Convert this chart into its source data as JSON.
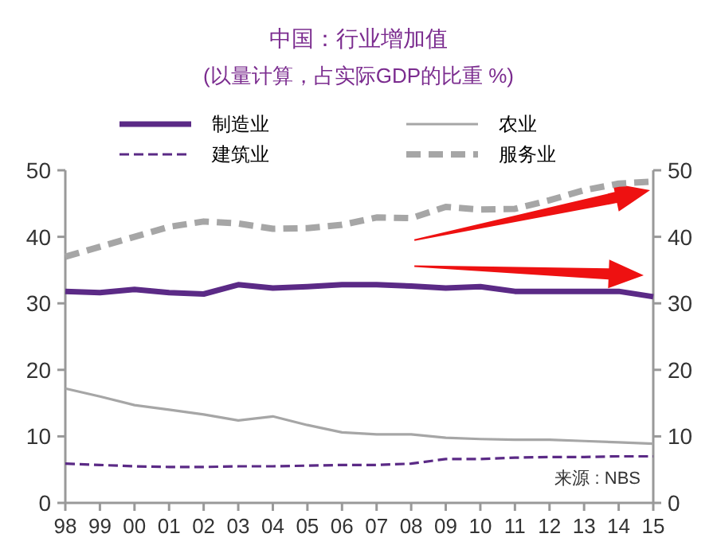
{
  "chart_data": {
    "type": "line",
    "title": "中国：行业增加值",
    "subtitle": "(以量计算，占实际GDP的比重 %)",
    "categories": [
      "98",
      "99",
      "00",
      "01",
      "02",
      "03",
      "04",
      "05",
      "06",
      "07",
      "08",
      "09",
      "10",
      "11",
      "12",
      "13",
      "14",
      "15"
    ],
    "series": [
      {
        "name": "制造业",
        "color": "#5b2a86",
        "line_style": "solid",
        "values": [
          31.8,
          31.6,
          32.1,
          31.6,
          31.4,
          32.8,
          32.3,
          32.5,
          32.8,
          32.8,
          32.6,
          32.3,
          32.5,
          31.8,
          31.8,
          31.8,
          31.8,
          31.0
        ]
      },
      {
        "name": "农业",
        "color": "#a6a6a6",
        "line_style": "solid",
        "values": [
          17.2,
          16,
          14.7,
          14,
          13.3,
          12.4,
          13,
          11.7,
          10.6,
          10.3,
          10.3,
          9.8,
          9.6,
          9.5,
          9.5,
          9.3,
          9.1,
          8.9
        ]
      },
      {
        "name": "建筑业",
        "color": "#5b2a86",
        "line_style": "dashed",
        "values": [
          5.9,
          5.7,
          5.5,
          5.4,
          5.4,
          5.5,
          5.5,
          5.6,
          5.7,
          5.7,
          5.9,
          6.6,
          6.6,
          6.8,
          6.9,
          6.9,
          7.0,
          7.0
        ]
      },
      {
        "name": "服务业",
        "color": "#a6a6a6",
        "line_style": "dashed",
        "values": [
          37,
          38.5,
          40,
          41.5,
          42.3,
          42,
          41.2,
          41.3,
          41.8,
          42.9,
          42.8,
          44.5,
          44.1,
          44.2,
          45.5,
          47,
          48,
          48.3
        ]
      }
    ],
    "ylim": [
      0,
      50
    ],
    "yticks": [
      0,
      10,
      20,
      30,
      40,
      50
    ],
    "y2lim": [
      0,
      50
    ],
    "y2ticks": [
      0,
      10,
      20,
      30,
      40,
      50
    ],
    "grid": false,
    "legend": "top",
    "marker": "none",
    "annotations": [
      "来源 : NBS"
    ]
  }
}
